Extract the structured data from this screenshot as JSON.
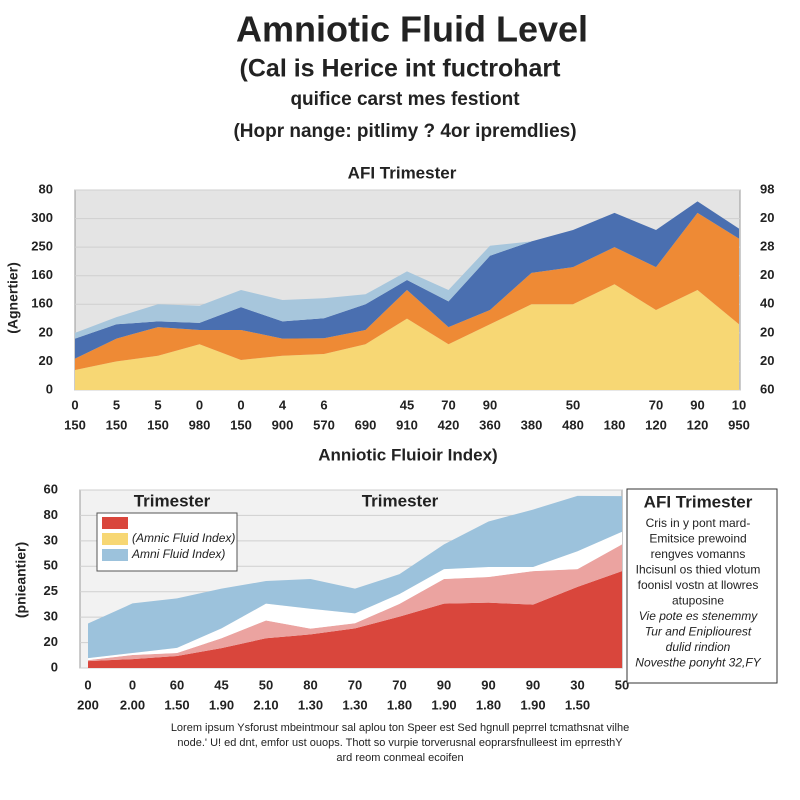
{
  "title": "Amniotic Fluid Level",
  "subtitle": "(Cal is Herice int fuctrohart",
  "subtitle2": "quifice carst mes festiont",
  "note": "(Hopr nange: pitlimy ? 4or ipremdlies)",
  "chart_data": [
    {
      "type": "stacked-area",
      "title": "AFI Trimester",
      "ylabel": "(Agnertier)",
      "categories": [
        "150",
        "150",
        "150",
        "980",
        "150",
        "900",
        "570",
        "690",
        "910",
        "420",
        "360",
        "380",
        "480",
        "180",
        "120",
        "120",
        "950"
      ],
      "xticks": [
        {
          "value": 0,
          "label": "0"
        },
        {
          "value": 1,
          "label": "5"
        },
        {
          "value": 2,
          "label": "5"
        },
        {
          "value": 3,
          "label": "0"
        },
        {
          "value": 4,
          "label": "0"
        },
        {
          "value": 5,
          "label": "4"
        },
        {
          "value": 6,
          "label": "6"
        },
        {
          "value": 8,
          "label": "45"
        },
        {
          "value": 9,
          "label": "70"
        },
        {
          "value": 10,
          "label": "90"
        },
        {
          "value": 12,
          "label": "50"
        },
        {
          "value": 14,
          "label": "70"
        },
        {
          "value": 15,
          "label": "90"
        },
        {
          "value": 16,
          "label": "10"
        }
      ],
      "ylim": [
        0,
        7
      ],
      "yticks": [
        {
          "value": 0,
          "label": "0"
        },
        {
          "value": 1,
          "label": "20"
        },
        {
          "value": 2,
          "label": "20"
        },
        {
          "value": 3,
          "label": "160"
        },
        {
          "value": 4,
          "label": "160"
        },
        {
          "value": 5,
          "label": "250"
        },
        {
          "value": 6,
          "label": "300"
        },
        {
          "value": 7,
          "label": "80"
        }
      ],
      "y2lim": [
        0,
        7
      ],
      "y2ticks": [
        {
          "value": 0,
          "label": "60"
        },
        {
          "value": 1,
          "label": "20"
        },
        {
          "value": 2,
          "label": "20"
        },
        {
          "value": 3,
          "label": "40"
        },
        {
          "value": 4,
          "label": "20"
        },
        {
          "value": 5,
          "label": "28"
        },
        {
          "value": 6,
          "label": "20"
        },
        {
          "value": 7,
          "label": "98"
        }
      ],
      "grid": true,
      "series": [
        {
          "color": "#f7d774",
          "values": [
            0.7,
            1.0,
            1.2,
            1.6,
            1.05,
            1.2,
            1.26,
            1.6,
            2.5,
            1.6,
            2.3,
            3.0,
            3.0,
            3.7,
            2.8,
            3.5,
            2.3
          ]
        },
        {
          "color": "#ee8a35",
          "values": [
            0.4,
            0.8,
            1.0,
            0.5,
            1.05,
            0.6,
            0.55,
            0.5,
            1.0,
            0.6,
            0.5,
            1.1,
            1.3,
            1.3,
            1.5,
            2.7,
            3.0
          ]
        },
        {
          "color": "#4a6fb0",
          "values": [
            0.7,
            0.5,
            0.2,
            0.25,
            0.8,
            0.6,
            0.7,
            0.9,
            0.35,
            0.9,
            1.9,
            1.1,
            1.3,
            1.2,
            1.3,
            0.4,
            0.35
          ]
        },
        {
          "color": "#a7c6dc",
          "values": [
            0.2,
            0.25,
            0.6,
            0.6,
            0.6,
            0.75,
            0.7,
            0.35,
            0.3,
            0.4,
            0.35,
            0,
            0,
            0,
            0,
            0,
            0
          ]
        }
      ]
    },
    {
      "type": "stacked-area",
      "title": "Anniotic Fluioir Index)",
      "ylabel": "(pnieantier)",
      "annotations": [
        "Trimester",
        "Trimester"
      ],
      "categories": [
        "0",
        "0",
        "60",
        "45",
        "50",
        "80",
        "70",
        "70",
        "90",
        "90",
        "90",
        "30",
        "50"
      ],
      "xticks": [
        {
          "value": 0,
          "label": "200"
        },
        {
          "value": 1,
          "label": "2.00"
        },
        {
          "value": 2,
          "label": "1.50"
        },
        {
          "value": 3,
          "label": "1.90"
        },
        {
          "value": 4,
          "label": "2.10"
        },
        {
          "value": 5,
          "label": "1.30"
        },
        {
          "value": 6,
          "label": "1.30"
        },
        {
          "value": 7,
          "label": "1.80"
        },
        {
          "value": 8,
          "label": "1.90"
        },
        {
          "value": 9,
          "label": "1.80"
        },
        {
          "value": 10,
          "label": "1.90"
        },
        {
          "value": 11,
          "label": "1.50"
        }
      ],
      "ylim": [
        0,
        7
      ],
      "yticks": [
        {
          "value": 0,
          "label": "0"
        },
        {
          "value": 1,
          "label": "20"
        },
        {
          "value": 2,
          "label": "30"
        },
        {
          "value": 3,
          "label": "25"
        },
        {
          "value": 4,
          "label": "50"
        },
        {
          "value": 5,
          "label": "30"
        },
        {
          "value": 6,
          "label": "80"
        },
        {
          "value": 7,
          "label": "60"
        }
      ],
      "grid": true,
      "legend": [
        {
          "color": "#d9463c"
        },
        {
          "color": "#f7d774",
          "name": "(Amnic Fluid Index)"
        },
        {
          "color": "#9cc2dc",
          "name": "Amni Fluid Index)"
        }
      ],
      "series": [
        {
          "color": "#d9463c",
          "values": [
            0.27,
            0.35,
            0.47,
            0.78,
            1.17,
            1.32,
            1.56,
            2.02,
            2.53,
            2.57,
            2.49,
            3.19,
            3.81
          ]
        },
        {
          "color": "#eba3a0",
          "values": [
            0.04,
            0.16,
            0.12,
            0.39,
            0.7,
            0.23,
            0.2,
            0.5,
            0.97,
            1.01,
            1.32,
            0.7,
            1.05
          ]
        },
        {
          "color": "#ffffff",
          "values": [
            0.08,
            0.08,
            0.2,
            0.39,
            0.66,
            0.78,
            0.39,
            0.39,
            0.39,
            0.39,
            0.16,
            0.7,
            0.5
          ]
        },
        {
          "color": "#9cc2dc",
          "values": [
            1.36,
            1.95,
            1.95,
            1.56,
            0.89,
            1.17,
            0.97,
            0.78,
            0.97,
            1.79,
            2.26,
            2.18,
            1.4
          ]
        }
      ]
    }
  ],
  "side_box": {
    "title": "AFI Trimester",
    "lines": [
      "Cris in y pont mard-",
      "Emitsice prewoind",
      "rengves vomanns",
      "Ihcisunl os thied vlotum",
      "foonisl vostn at llowres",
      "atuposine",
      "Vie pote es stenemmy",
      "Tur and Enipliourest",
      "dulid rindion",
      "Novesthe ponyht 32,FY"
    ]
  },
  "footer": [
    "Lorem ipsum Ysforust mbeintmour sal aplou ton Speer est Sed hgnull peprrel tcmathsnat vilhe",
    "node.' U! ed dnt, emfor ust ouops. Thott so vurpie torverusnal eoprarsfnulleest im eprresthY",
    "ard reom conmeal ecoifen"
  ]
}
